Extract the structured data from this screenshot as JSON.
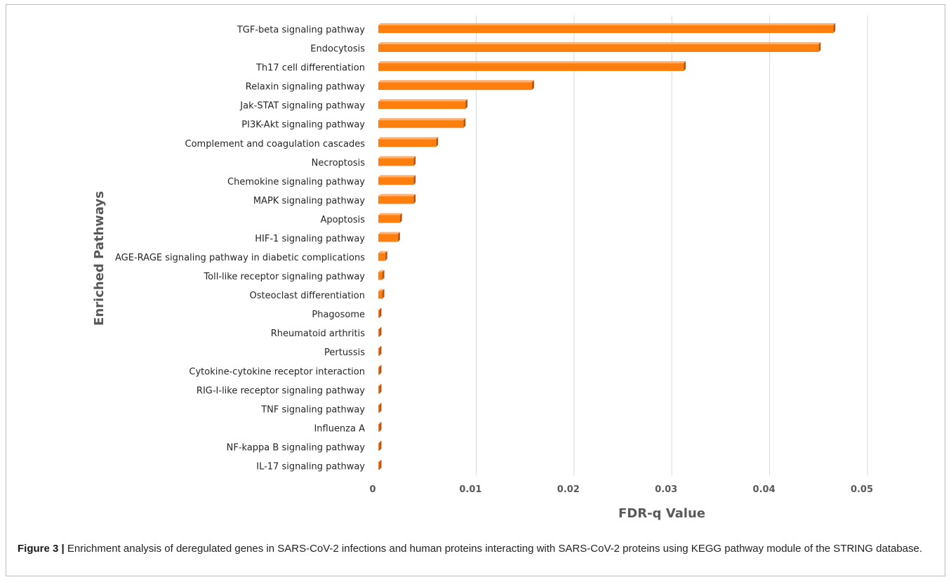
{
  "caption": {
    "label": "Figure 3 |",
    "text": " Enrichment analysis of deregulated genes in SARS-CoV-2 infections and human proteins interacting with SARS-CoV-2 proteins using KEGG pathway module of the STRING database."
  },
  "colors": {
    "bar_front": "#ff7f0e",
    "bar_side": "#c0520a",
    "grid": "#d9d9d9"
  },
  "chart_data": {
    "type": "bar",
    "orientation": "horizontal",
    "style": "3d-clustered-bar",
    "xlabel": "FDR-q Value",
    "ylabel": "Enriched Pathways",
    "xlim": [
      0,
      0.05
    ],
    "xticks": [
      0,
      0.01,
      0.02,
      0.03,
      0.04,
      0.05
    ],
    "xtick_labels": [
      "0",
      "0.01",
      "0.02",
      "0.03",
      "0.04",
      "0.05"
    ],
    "grid": "vertical",
    "categories": [
      "TGF-beta signaling pathway",
      "Endocytosis",
      "Th17 cell differentiation",
      "Relaxin signaling pathway",
      "Jak-STAT signaling pathway",
      "PI3K-Akt signaling pathway",
      "Complement and coagulation cascades",
      "Necroptosis",
      "Chemokine signaling pathway",
      "MAPK signaling pathway",
      "Apoptosis",
      "HIF-1 signaling pathway",
      "AGE-RAGE signaling pathway in diabetic complications",
      "Toll-like receptor signaling pathway",
      "Osteoclast differentiation",
      "Phagosome",
      "Rheumatoid arthritis",
      "Pertussis",
      "Cytokine-cytokine receptor interaction",
      "RIG-I-like receptor signaling pathway",
      "TNF signaling pathway",
      "Influenza A",
      "NF-kappa B signaling pathway",
      "IL-17 signaling pathway"
    ],
    "values": [
      0.0465,
      0.045,
      0.0312,
      0.0157,
      0.0089,
      0.0087,
      0.0059,
      0.0036,
      0.0036,
      0.0036,
      0.0022,
      0.002,
      0.0007,
      0.0004,
      0.0004,
      0.0001,
      0.0001,
      0.0001,
      0.0001,
      0.0001,
      0.0001,
      0.0001,
      0.0001,
      0.0001
    ]
  }
}
